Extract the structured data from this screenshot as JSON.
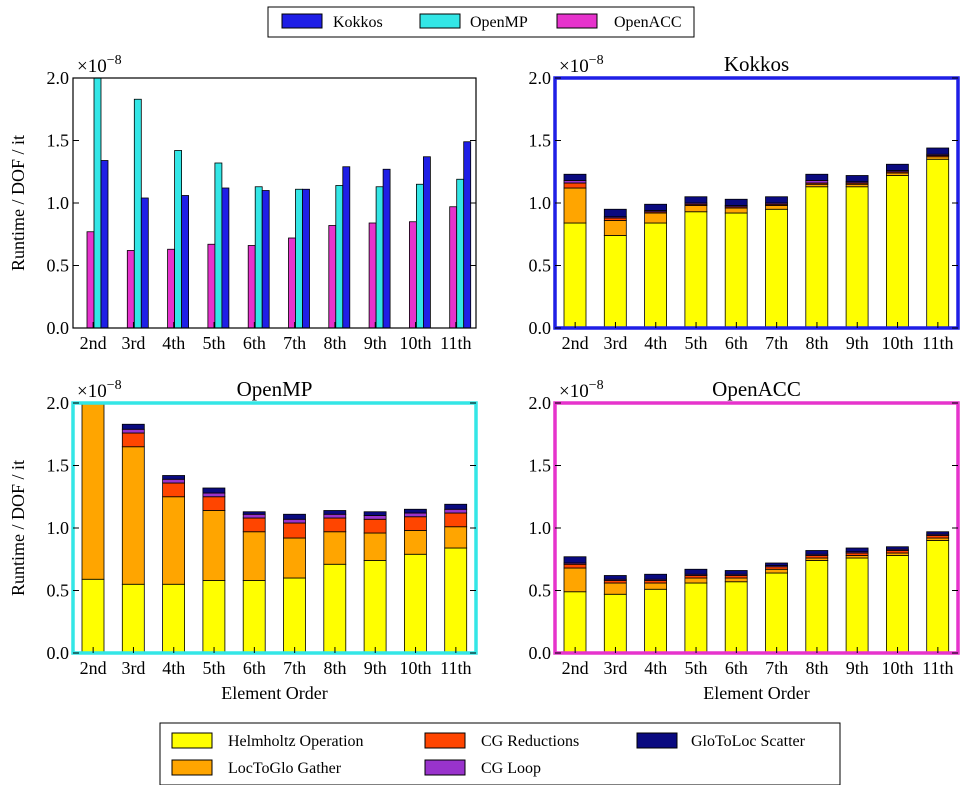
{
  "chart_data": {
    "type": "bar",
    "categories": [
      "2nd",
      "3rd",
      "4th",
      "5th",
      "6th",
      "7th",
      "8th",
      "9th",
      "10th",
      "11th"
    ],
    "exponent_label": "×10^−8",
    "ylim": [
      0,
      2.0
    ],
    "yticks": [
      "0.0",
      "0.5",
      "1.0",
      "1.5",
      "2.0"
    ],
    "ylabel": "Runtime / DOF / it",
    "xlabel": "Element Order",
    "grid": false,
    "colors": {
      "Kokkos": "#1f1fe6",
      "OpenMP": "#33e6e6",
      "OpenACC": "#e633cc",
      "Helmholtz Operation": "#ffff00",
      "LocToGlo Gather": "#ffa500",
      "CG Reductions": "#ff4500",
      "CG Loop": "#9933cc",
      "GloToLoc Scatter": "#0a0a80"
    },
    "top_legend": [
      "Kokkos",
      "OpenMP",
      "OpenACC"
    ],
    "bottom_legend": [
      "Helmholtz Operation",
      "CG Reductions",
      "GloToLoc Scatter",
      "LocToGlo Gather",
      "CG Loop"
    ],
    "comparison": {
      "title": "",
      "series": [
        {
          "name": "OpenACC",
          "values": [
            0.77,
            0.62,
            0.63,
            0.67,
            0.66,
            0.72,
            0.82,
            0.84,
            0.85,
            0.97
          ]
        },
        {
          "name": "OpenMP",
          "values": [
            2.02,
            1.83,
            1.42,
            1.32,
            1.13,
            1.11,
            1.14,
            1.13,
            1.15,
            1.19
          ]
        },
        {
          "name": "Kokkos",
          "values": [
            1.34,
            1.04,
            1.06,
            1.12,
            1.1,
            1.11,
            1.29,
            1.27,
            1.37,
            1.49
          ]
        }
      ]
    },
    "breakdowns": [
      {
        "title": "Kokkos",
        "frame_color": "#1f1fe6",
        "series": [
          {
            "name": "Helmholtz Operation",
            "values": [
              0.84,
              0.74,
              0.84,
              0.93,
              0.92,
              0.95,
              1.13,
              1.13,
              1.22,
              1.35
            ]
          },
          {
            "name": "LocToGlo Gather",
            "values": [
              0.28,
              0.12,
              0.08,
              0.05,
              0.04,
              0.03,
              0.02,
              0.02,
              0.02,
              0.02
            ]
          },
          {
            "name": "CG Reductions",
            "values": [
              0.04,
              0.02,
              0.01,
              0.01,
              0.01,
              0.01,
              0.01,
              0.01,
              0.01,
              0.01
            ]
          },
          {
            "name": "CG Loop",
            "values": [
              0.02,
              0.01,
              0.01,
              0.01,
              0.01,
              0.01,
              0.02,
              0.01,
              0.01,
              0.01
            ]
          },
          {
            "name": "GloToLoc Scatter",
            "values": [
              0.05,
              0.06,
              0.05,
              0.05,
              0.05,
              0.05,
              0.05,
              0.05,
              0.05,
              0.05
            ]
          }
        ]
      },
      {
        "title": "OpenMP",
        "frame_color": "#33e6e6",
        "series": [
          {
            "name": "Helmholtz Operation",
            "values": [
              0.59,
              0.55,
              0.55,
              0.58,
              0.58,
              0.6,
              0.71,
              0.74,
              0.79,
              0.84
            ]
          },
          {
            "name": "LocToGlo Gather",
            "values": [
              1.41,
              1.1,
              0.7,
              0.56,
              0.39,
              0.32,
              0.26,
              0.22,
              0.19,
              0.17
            ]
          },
          {
            "name": "CG Reductions",
            "values": [
              0.0,
              0.11,
              0.11,
              0.11,
              0.11,
              0.12,
              0.11,
              0.11,
              0.11,
              0.11
            ]
          },
          {
            "name": "CG Loop",
            "values": [
              0.0,
              0.03,
              0.03,
              0.03,
              0.03,
              0.03,
              0.03,
              0.03,
              0.03,
              0.03
            ]
          },
          {
            "name": "GloToLoc Scatter",
            "values": [
              0.0,
              0.04,
              0.03,
              0.04,
              0.02,
              0.04,
              0.03,
              0.03,
              0.03,
              0.04
            ]
          }
        ]
      },
      {
        "title": "OpenACC",
        "frame_color": "#e633cc",
        "series": [
          {
            "name": "Helmholtz Operation",
            "values": [
              0.49,
              0.47,
              0.51,
              0.56,
              0.57,
              0.64,
              0.74,
              0.76,
              0.78,
              0.9
            ]
          },
          {
            "name": "LocToGlo Gather",
            "values": [
              0.19,
              0.09,
              0.05,
              0.04,
              0.03,
              0.03,
              0.02,
              0.02,
              0.02,
              0.02
            ]
          },
          {
            "name": "CG Reductions",
            "values": [
              0.03,
              0.02,
              0.02,
              0.02,
              0.02,
              0.02,
              0.02,
              0.02,
              0.02,
              0.02
            ]
          },
          {
            "name": "CG Loop",
            "values": [
              0.01,
              0.01,
              0.01,
              0.01,
              0.01,
              0.01,
              0.01,
              0.01,
              0.01,
              0.01
            ]
          },
          {
            "name": "GloToLoc Scatter",
            "values": [
              0.05,
              0.03,
              0.04,
              0.04,
              0.03,
              0.02,
              0.03,
              0.03,
              0.02,
              0.02
            ]
          }
        ]
      }
    ]
  }
}
